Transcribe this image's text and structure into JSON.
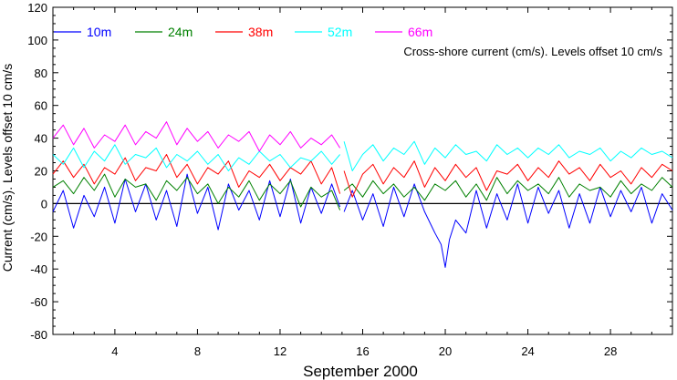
{
  "chart_data": {
    "type": "line",
    "title": "Cross-shore current (cm/s). Levels offset 10 cm/s",
    "xlabel": "September 2000",
    "ylabel": "Current (cm/s). Levels offset 10 cm/s",
    "xlim": [
      1,
      31
    ],
    "ylim": [
      -80,
      120
    ],
    "x_ticks": [
      4,
      8,
      12,
      16,
      20,
      24,
      28
    ],
    "y_ticks": [
      -80,
      -60,
      -40,
      -20,
      0,
      20,
      40,
      60,
      80,
      100,
      120
    ],
    "x_unit": "day of September 2000",
    "zero_line": 0,
    "gap_between_days": [
      14.9,
      15.1
    ],
    "legend_position": "top-left, inside",
    "series": [
      {
        "name": "10m",
        "color": "#0000ff",
        "offset": 0,
        "x": [
          1.0,
          1.5,
          2.0,
          2.5,
          3.0,
          3.5,
          4.0,
          4.5,
          5.0,
          5.5,
          6.0,
          6.5,
          7.0,
          7.5,
          8.0,
          8.5,
          9.0,
          9.5,
          10.0,
          10.5,
          11.0,
          11.5,
          12.0,
          12.5,
          13.0,
          13.5,
          14.0,
          14.5,
          14.9,
          15.1,
          15.5,
          16.0,
          16.5,
          17.0,
          17.5,
          18.0,
          18.5,
          19.0,
          19.5,
          19.8,
          20.0,
          20.2,
          20.5,
          21.0,
          21.5,
          22.0,
          22.5,
          23.0,
          23.5,
          24.0,
          24.5,
          25.0,
          25.5,
          26.0,
          26.5,
          27.0,
          27.5,
          28.0,
          28.5,
          29.0,
          29.5,
          30.0,
          30.5,
          31.0
        ],
        "y": [
          -5,
          8,
          -15,
          5,
          -8,
          10,
          -12,
          15,
          -5,
          12,
          -10,
          8,
          -14,
          18,
          -6,
          10,
          -16,
          12,
          -4,
          8,
          -10,
          14,
          -8,
          15,
          -12,
          10,
          -6,
          12,
          -2,
          -5,
          8,
          -10,
          6,
          -14,
          10,
          -8,
          12,
          -5,
          -18,
          -25,
          -39,
          -22,
          -10,
          -18,
          8,
          -15,
          6,
          -10,
          12,
          -12,
          10,
          -6,
          8,
          -15,
          6,
          -12,
          10,
          -8,
          8,
          -5,
          10,
          -12,
          6,
          -4
        ]
      },
      {
        "name": "24m",
        "color": "#008000",
        "offset": 10,
        "x": [
          1.0,
          1.5,
          2.0,
          2.5,
          3.0,
          3.5,
          4.0,
          4.5,
          5.0,
          5.5,
          6.0,
          6.5,
          7.0,
          7.5,
          8.0,
          8.5,
          9.0,
          9.5,
          10.0,
          10.5,
          11.0,
          11.5,
          12.0,
          12.5,
          13.0,
          13.5,
          14.0,
          14.5,
          14.9,
          15.1,
          15.5,
          16.0,
          16.5,
          17.0,
          17.5,
          18.0,
          18.5,
          19.0,
          19.5,
          20.0,
          20.5,
          21.0,
          21.5,
          22.0,
          22.5,
          23.0,
          23.5,
          24.0,
          24.5,
          25.0,
          25.5,
          26.0,
          26.5,
          27.0,
          27.5,
          28.0,
          28.5,
          29.0,
          29.5,
          30.0,
          30.5,
          31.0
        ],
        "y": [
          10,
          14,
          6,
          16,
          8,
          18,
          4,
          15,
          10,
          12,
          2,
          14,
          8,
          16,
          6,
          12,
          0,
          10,
          4,
          14,
          2,
          12,
          6,
          14,
          -2,
          10,
          4,
          8,
          -4,
          8,
          12,
          4,
          14,
          6,
          12,
          4,
          10,
          2,
          12,
          8,
          14,
          4,
          12,
          2,
          16,
          6,
          14,
          8,
          12,
          6,
          16,
          4,
          12,
          8,
          10,
          4,
          14,
          6,
          12,
          8,
          16,
          10
        ]
      },
      {
        "name": "38m",
        "color": "#ff0000",
        "offset": 20,
        "x": [
          1.0,
          1.5,
          2.0,
          2.5,
          3.0,
          3.5,
          4.0,
          4.5,
          5.0,
          5.5,
          6.0,
          6.5,
          7.0,
          7.5,
          8.0,
          8.5,
          9.0,
          9.5,
          10.0,
          10.5,
          11.0,
          11.5,
          12.0,
          12.5,
          13.0,
          13.5,
          14.0,
          14.5,
          14.9,
          15.1,
          15.5,
          16.0,
          16.5,
          17.0,
          17.5,
          18.0,
          18.5,
          19.0,
          19.5,
          20.0,
          20.5,
          21.0,
          21.5,
          22.0,
          22.5,
          23.0,
          23.5,
          24.0,
          24.5,
          25.0,
          25.5,
          26.0,
          26.5,
          27.0,
          27.5,
          28.0,
          28.5,
          29.0,
          29.5,
          30.0,
          30.5,
          31.0
        ],
        "y": [
          18,
          26,
          16,
          24,
          12,
          22,
          18,
          28,
          14,
          22,
          20,
          30,
          16,
          24,
          12,
          22,
          18,
          26,
          10,
          20,
          16,
          24,
          14,
          22,
          18,
          26,
          12,
          22,
          6,
          20,
          4,
          18,
          24,
          12,
          22,
          16,
          26,
          10,
          22,
          14,
          24,
          16,
          22,
          8,
          20,
          18,
          24,
          14,
          22,
          16,
          26,
          18,
          22,
          14,
          24,
          16,
          20,
          12,
          22,
          16,
          24,
          20
        ]
      },
      {
        "name": "52m",
        "color": "#00ffff",
        "offset": 30,
        "x": [
          1.0,
          1.5,
          2.0,
          2.5,
          3.0,
          3.5,
          4.0,
          4.5,
          5.0,
          5.5,
          6.0,
          6.5,
          7.0,
          7.5,
          8.0,
          8.5,
          9.0,
          9.5,
          10.0,
          10.5,
          11.0,
          11.5,
          12.0,
          12.5,
          13.0,
          13.5,
          14.0,
          14.5,
          14.9,
          15.1,
          15.5,
          16.0,
          16.5,
          17.0,
          17.5,
          18.0,
          18.5,
          19.0,
          19.5,
          20.0,
          20.5,
          21.0,
          21.5,
          22.0,
          22.5,
          23.0,
          23.5,
          24.0,
          24.5,
          25.0,
          25.5,
          26.0,
          26.5,
          27.0,
          27.5,
          28.0,
          28.5,
          29.0,
          29.5,
          30.0,
          30.5,
          31.0
        ],
        "y": [
          30,
          24,
          34,
          22,
          32,
          26,
          36,
          24,
          30,
          28,
          34,
          22,
          30,
          26,
          32,
          24,
          30,
          20,
          28,
          24,
          32,
          26,
          30,
          22,
          28,
          26,
          32,
          24,
          30,
          38,
          20,
          30,
          36,
          26,
          34,
          30,
          38,
          24,
          34,
          28,
          36,
          30,
          32,
          26,
          36,
          30,
          34,
          28,
          34,
          30,
          36,
          28,
          32,
          30,
          34,
          26,
          32,
          28,
          34,
          30,
          32,
          28
        ]
      },
      {
        "name": "66m",
        "color": "#ff00ff",
        "offset": 40,
        "x": [
          1.0,
          1.5,
          2.0,
          2.5,
          3.0,
          3.5,
          4.0,
          4.5,
          5.0,
          5.5,
          6.0,
          6.5,
          7.0,
          7.5,
          8.0,
          8.5,
          9.0,
          9.5,
          10.0,
          10.5,
          11.0,
          11.5,
          12.0,
          12.5,
          13.0,
          13.5,
          14.0,
          14.5,
          14.9
        ],
        "y": [
          40,
          48,
          36,
          46,
          34,
          42,
          38,
          48,
          36,
          44,
          40,
          50,
          36,
          46,
          38,
          44,
          34,
          42,
          38,
          44,
          32,
          42,
          36,
          44,
          34,
          40,
          36,
          42,
          34
        ]
      }
    ]
  }
}
